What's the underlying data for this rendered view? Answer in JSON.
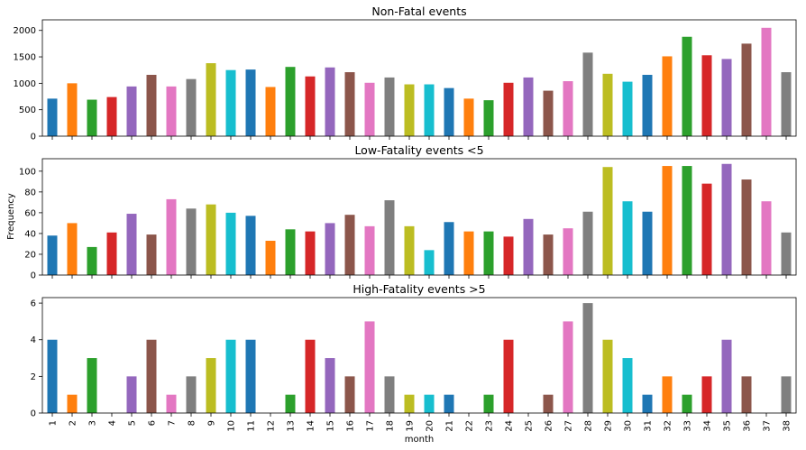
{
  "figure": {
    "ylabel": "Frequency",
    "xlabel": "month"
  },
  "palette": [
    "#1f77b4",
    "#ff7f0e",
    "#2ca02c",
    "#d62728",
    "#9467bd",
    "#8c564b",
    "#e377c2",
    "#7f7f7f",
    "#bcbd22",
    "#17becf"
  ],
  "chart_data": [
    {
      "type": "bar",
      "title": "Non-Fatal events",
      "categories": [
        "1",
        "2",
        "3",
        "4",
        "5",
        "6",
        "7",
        "8",
        "9",
        "10",
        "11",
        "12",
        "13",
        "14",
        "15",
        "16",
        "17",
        "18",
        "19",
        "20",
        "21",
        "22",
        "23",
        "24",
        "25",
        "26",
        "27",
        "28",
        "29",
        "30",
        "31",
        "32",
        "33",
        "34",
        "35",
        "36",
        "37",
        "38"
      ],
      "values": [
        710,
        1000,
        690,
        740,
        940,
        1160,
        940,
        1080,
        1380,
        1250,
        1260,
        930,
        1310,
        1130,
        1300,
        1210,
        1010,
        1110,
        980,
        980,
        910,
        710,
        680,
        1010,
        1110,
        860,
        1040,
        1580,
        1180,
        1030,
        1160,
        1510,
        1880,
        1530,
        1460,
        1750,
        2050,
        1210
      ],
      "ylim": [
        0,
        2200
      ],
      "yticks": [
        0,
        500,
        1000,
        1500,
        2000
      ],
      "xlabel": "",
      "ylabel": ""
    },
    {
      "type": "bar",
      "title": "Low-Fatality events <5",
      "categories": [
        "1",
        "2",
        "3",
        "4",
        "5",
        "6",
        "7",
        "8",
        "9",
        "10",
        "11",
        "12",
        "13",
        "14",
        "15",
        "16",
        "17",
        "18",
        "19",
        "20",
        "21",
        "22",
        "23",
        "24",
        "25",
        "26",
        "27",
        "28",
        "29",
        "30",
        "31",
        "32",
        "33",
        "34",
        "35",
        "36",
        "37",
        "38"
      ],
      "values": [
        38,
        50,
        27,
        41,
        59,
        39,
        73,
        64,
        68,
        60,
        57,
        33,
        44,
        42,
        50,
        58,
        47,
        72,
        47,
        24,
        51,
        42,
        42,
        37,
        54,
        39,
        45,
        61,
        104,
        71,
        61,
        105,
        105,
        88,
        107,
        92,
        71,
        41
      ],
      "ylim": [
        0,
        112
      ],
      "yticks": [
        0,
        20,
        40,
        60,
        80,
        100
      ],
      "xlabel": "",
      "ylabel": "Frequency"
    },
    {
      "type": "bar",
      "title": "High-Fatality events >5",
      "categories": [
        "1",
        "2",
        "3",
        "4",
        "5",
        "6",
        "7",
        "8",
        "9",
        "10",
        "11",
        "12",
        "13",
        "14",
        "15",
        "16",
        "17",
        "18",
        "19",
        "20",
        "21",
        "22",
        "23",
        "24",
        "25",
        "26",
        "27",
        "28",
        "29",
        "30",
        "31",
        "32",
        "33",
        "34",
        "35",
        "36",
        "37",
        "38"
      ],
      "values": [
        4,
        1,
        3,
        0,
        2,
        4,
        1,
        2,
        3,
        4,
        4,
        0,
        1,
        4,
        3,
        2,
        5,
        2,
        1,
        1,
        1,
        0,
        1,
        4,
        0,
        1,
        5,
        6,
        4,
        3,
        1,
        2,
        1,
        2,
        4,
        2,
        0,
        2
      ],
      "ylim": [
        0,
        6.3
      ],
      "yticks": [
        0,
        2,
        4,
        6
      ],
      "xlabel": "month",
      "ylabel": ""
    }
  ]
}
